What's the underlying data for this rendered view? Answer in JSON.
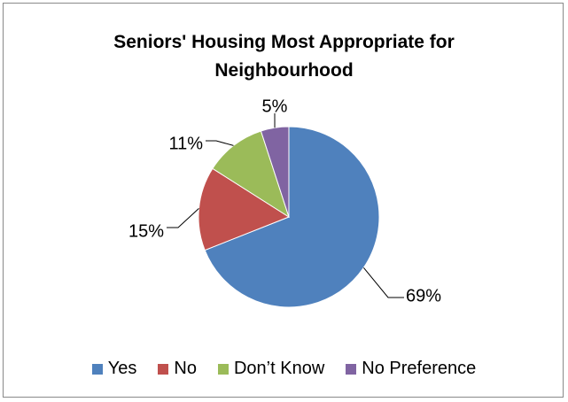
{
  "chart_data": {
    "type": "pie",
    "title_lines": [
      "Seniors' Housing Most Appropriate for",
      "Neighbourhood"
    ],
    "categories": [
      "Yes",
      "No",
      "Don’t Know",
      "No Preference"
    ],
    "values": [
      69,
      15,
      11,
      5
    ],
    "data_labels": [
      "69%",
      "15%",
      "11%",
      "5%"
    ],
    "colors": [
      "#4F81BD",
      "#C0504D",
      "#9BBB59",
      "#8064A2"
    ],
    "legend_position": "bottom",
    "start_angle": "12 o'clock, clockwise"
  }
}
